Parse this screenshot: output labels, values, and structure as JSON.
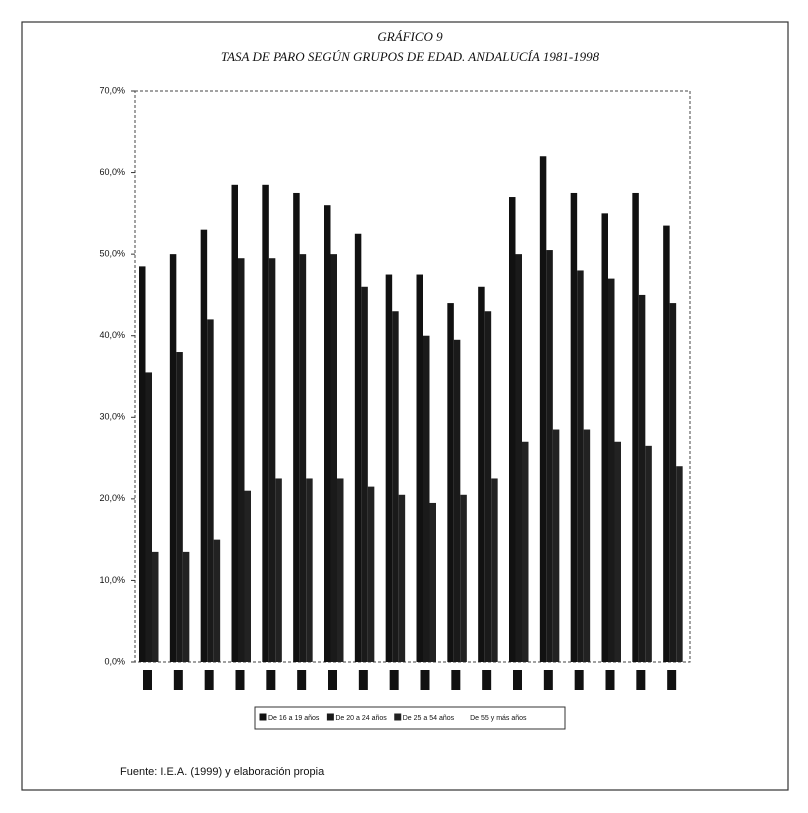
{
  "chart_data": {
    "type": "bar",
    "title": "GRÁFICO 9",
    "subtitle": "TASA DE PARO SEGÚN GRUPOS DE EDAD. ANDALUCÍA 1981-1998",
    "source": "Fuente: I.E.A. (1999) y elaboración propia",
    "categories": [
      null,
      null,
      null,
      null,
      null,
      null,
      null,
      null,
      null,
      null,
      null,
      null,
      null,
      null,
      null,
      null,
      null,
      null
    ],
    "series": [
      {
        "name": "De 16 a 19 años",
        "color": "#111111",
        "values": [
          48.5,
          50,
          53,
          58.5,
          58.5,
          57.5,
          56,
          52.5,
          47.5,
          47.5,
          44,
          46,
          57,
          62,
          57.5,
          55,
          57.5,
          53.5
        ]
      },
      {
        "name": "De 20 a 24 años",
        "color": "#1a1a1a",
        "values": [
          35.5,
          38,
          42,
          49.5,
          49.5,
          50,
          50,
          46,
          43,
          40,
          39.5,
          43,
          50,
          50.5,
          48,
          47,
          45,
          44
        ]
      },
      {
        "name": "De 25 a 54 años",
        "color": "#222222",
        "values": [
          13.5,
          13.5,
          15,
          21,
          22.5,
          22.5,
          22.5,
          21.5,
          20.5,
          19.5,
          20.5,
          22.5,
          27,
          28.5,
          28.5,
          27,
          26.5,
          24
        ]
      },
      {
        "name": "De 55 y más años",
        "color": "#ffffff",
        "values": [
          null,
          null,
          null,
          null,
          null,
          null,
          null,
          null,
          null,
          null,
          null,
          null,
          null,
          null,
          null,
          null,
          null,
          null
        ]
      }
    ],
    "ylim": [
      0,
      70
    ],
    "yticks": [
      {
        "value": 0,
        "label": "0,0%"
      },
      {
        "value": 10,
        "label": "10,0%"
      },
      {
        "value": 20,
        "label": "20,0%"
      },
      {
        "value": 30,
        "label": "30,0%"
      },
      {
        "value": 40,
        "label": "40,0%"
      },
      {
        "value": 50,
        "label": "50,0%"
      },
      {
        "value": 60,
        "label": "60,0%"
      },
      {
        "value": 70,
        "label": "70,0%"
      }
    ],
    "grid": false
  }
}
